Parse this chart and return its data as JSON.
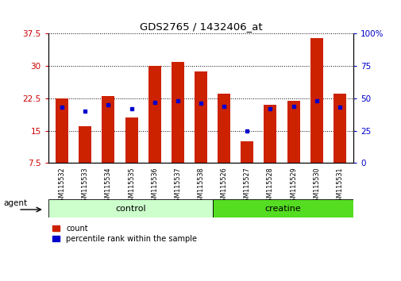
{
  "title": "GDS2765 / 1432406_at",
  "categories": [
    "GSM115532",
    "GSM115533",
    "GSM115534",
    "GSM115535",
    "GSM115536",
    "GSM115537",
    "GSM115538",
    "GSM115526",
    "GSM115527",
    "GSM115528",
    "GSM115529",
    "GSM115530",
    "GSM115531"
  ],
  "groups": [
    "control",
    "control",
    "control",
    "control",
    "control",
    "control",
    "control",
    "creatine",
    "creatine",
    "creatine",
    "creatine",
    "creatine",
    "creatine"
  ],
  "red_values": [
    22.5,
    16.0,
    23.0,
    18.0,
    30.0,
    31.0,
    28.8,
    23.5,
    12.5,
    21.0,
    22.0,
    36.5,
    23.5
  ],
  "blue_values": [
    43,
    40,
    45,
    42,
    47,
    48,
    46,
    44,
    25,
    42,
    44,
    48,
    43
  ],
  "ylim_left": [
    7.5,
    37.5
  ],
  "ylim_right": [
    0,
    100
  ],
  "yticks_left": [
    7.5,
    15.0,
    22.5,
    30.0,
    37.5
  ],
  "yticks_right": [
    0,
    25,
    50,
    75,
    100
  ],
  "ytick_labels_left": [
    "7.5",
    "15",
    "22.5",
    "30",
    "37.5"
  ],
  "ytick_labels_right": [
    "0",
    "25",
    "50",
    "75",
    "100%"
  ],
  "left_color": "#cc0000",
  "right_color": "#0000cc",
  "bar_color": "#cc2200",
  "dot_color": "#0000cc",
  "control_bg": "#ccffcc",
  "creatine_bg": "#55dd22",
  "xlabel_agent": "agent",
  "legend_count": "count",
  "legend_percentile": "percentile rank within the sample",
  "bar_width": 0.55,
  "n_control": 7,
  "n_creatine": 6
}
